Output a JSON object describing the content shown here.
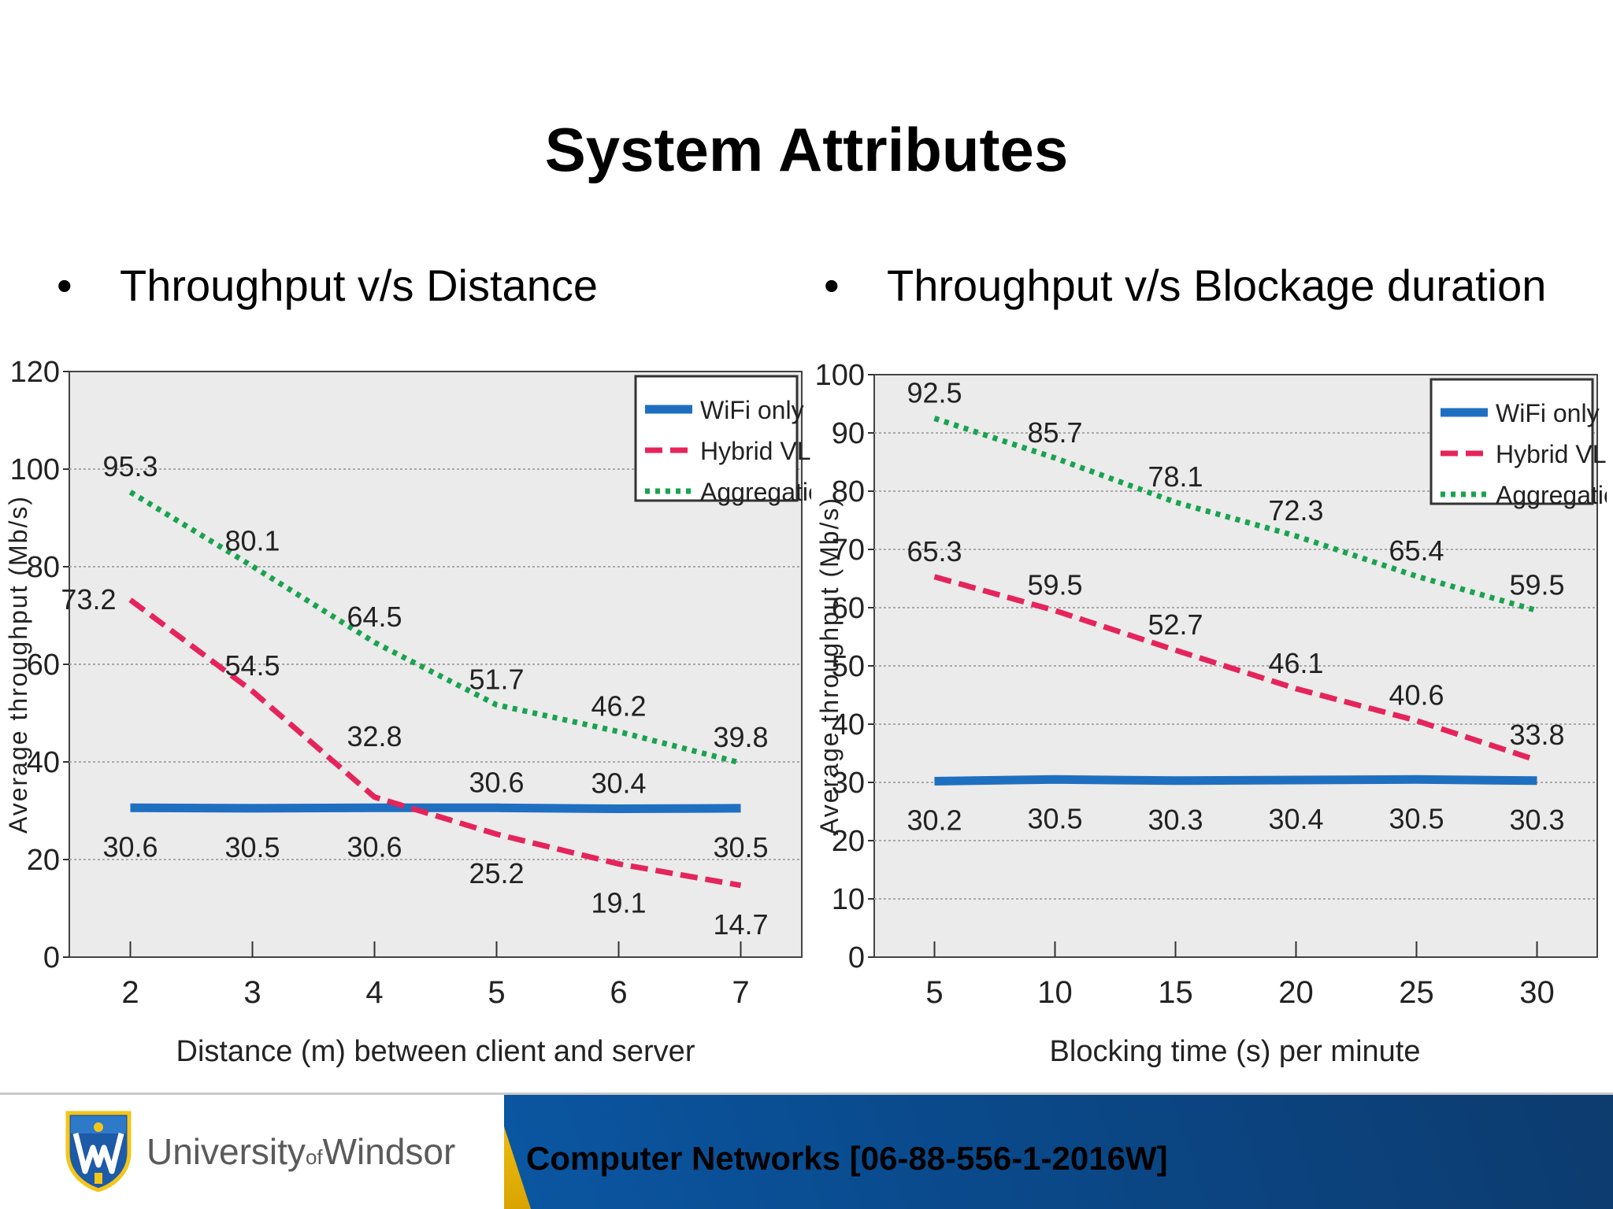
{
  "slide": {
    "title": "System Attributes",
    "bullets": [
      "Throughput v/s Distance",
      "Throughput v/s Blockage duration"
    ]
  },
  "footer": {
    "university_prefix": "University",
    "university_of": "of",
    "university_suffix": "Windsor",
    "course": "Computer Networks [06-88-556-1-2016W]",
    "colors": {
      "blue": "#0a4a8c",
      "gold": "#f5c518"
    }
  },
  "chart_data": [
    {
      "type": "line",
      "title": "",
      "xlabel": "Distance (m) between client and server",
      "ylabel": "Average throughput (Mb/s)",
      "x": [
        2,
        3,
        4,
        5,
        6,
        7
      ],
      "xlim": [
        1.5,
        7.5
      ],
      "ylim": [
        0,
        120
      ],
      "yticks": [
        0,
        20,
        40,
        60,
        80,
        100,
        120
      ],
      "grid": true,
      "legend": "top-right",
      "series": [
        {
          "name": "WiFi only",
          "values": [
            30.6,
            30.5,
            30.6,
            30.6,
            30.4,
            30.5
          ],
          "color": "#1f6fc1",
          "style": "solid"
        },
        {
          "name": "Hybrid VLC",
          "values": [
            73.2,
            54.5,
            32.8,
            25.2,
            19.1,
            14.7
          ],
          "color": "#e5245b",
          "style": "dashed"
        },
        {
          "name": "Aggregation",
          "values": [
            95.3,
            80.1,
            64.5,
            51.7,
            46.2,
            39.8
          ],
          "color": "#19a34f",
          "style": "dotted"
        }
      ],
      "labels": [
        {
          "text": "95.3",
          "x": 2,
          "y": 95.3,
          "pos": "above"
        },
        {
          "text": "80.1",
          "x": 3,
          "y": 80.1,
          "pos": "above"
        },
        {
          "text": "64.5",
          "x": 4,
          "y": 64.5,
          "pos": "above"
        },
        {
          "text": "51.7",
          "x": 5,
          "y": 51.7,
          "pos": "above"
        },
        {
          "text": "46.2",
          "x": 6,
          "y": 46.2,
          "pos": "above"
        },
        {
          "text": "39.8",
          "x": 7,
          "y": 39.8,
          "pos": "above"
        },
        {
          "text": "73.2",
          "x": 2,
          "y": 73.2,
          "pos": "left"
        },
        {
          "text": "54.5",
          "x": 3,
          "y": 54.5,
          "pos": "above"
        },
        {
          "text": "32.8",
          "x": 4,
          "y": 40,
          "pos": "above"
        },
        {
          "text": "25.2",
          "x": 5,
          "y": 25.2,
          "pos": "below"
        },
        {
          "text": "19.1",
          "x": 6,
          "y": 19.1,
          "pos": "below"
        },
        {
          "text": "14.7",
          "x": 7,
          "y": 14.7,
          "pos": "below"
        },
        {
          "text": "30.6",
          "x": 2,
          "y": 30.6,
          "pos": "below"
        },
        {
          "text": "30.5",
          "x": 3,
          "y": 30.5,
          "pos": "below"
        },
        {
          "text": "30.6",
          "x": 4,
          "y": 30.6,
          "pos": "below"
        },
        {
          "text": "30.6",
          "x": 5,
          "y": 30.6,
          "pos": "above"
        },
        {
          "text": "30.4",
          "x": 6,
          "y": 30.4,
          "pos": "above"
        },
        {
          "text": "30.5",
          "x": 7,
          "y": 30.5,
          "pos": "below"
        }
      ]
    },
    {
      "type": "line",
      "title": "",
      "xlabel": "Blocking time (s) per minute",
      "ylabel": "Average throughput (Mb/s)",
      "x": [
        5,
        10,
        15,
        20,
        25,
        30
      ],
      "xlim": [
        2.5,
        32.5
      ],
      "ylim": [
        0,
        100
      ],
      "yticks": [
        0,
        10,
        20,
        30,
        40,
        50,
        60,
        70,
        80,
        90,
        100
      ],
      "grid": true,
      "legend": "top-right",
      "series": [
        {
          "name": "WiFi only",
          "values": [
            30.2,
            30.5,
            30.3,
            30.4,
            30.5,
            30.3
          ],
          "color": "#1f6fc1",
          "style": "solid"
        },
        {
          "name": "Hybrid VLC",
          "values": [
            65.3,
            59.5,
            52.7,
            46.1,
            40.6,
            33.8
          ],
          "color": "#e5245b",
          "style": "dashed"
        },
        {
          "name": "Aggregation",
          "values": [
            92.5,
            85.7,
            78.1,
            72.3,
            65.4,
            59.5
          ],
          "color": "#19a34f",
          "style": "dotted"
        }
      ],
      "labels": [
        {
          "text": "92.5",
          "x": 5,
          "y": 92.5,
          "pos": "above"
        },
        {
          "text": "85.7",
          "x": 10,
          "y": 85.7,
          "pos": "above"
        },
        {
          "text": "78.1",
          "x": 15,
          "y": 78.1,
          "pos": "above"
        },
        {
          "text": "72.3",
          "x": 20,
          "y": 72.3,
          "pos": "above"
        },
        {
          "text": "65.4",
          "x": 25,
          "y": 65.4,
          "pos": "above"
        },
        {
          "text": "59.5",
          "x": 30,
          "y": 59.5,
          "pos": "above"
        },
        {
          "text": "65.3",
          "x": 5,
          "y": 65.3,
          "pos": "above"
        },
        {
          "text": "59.5",
          "x": 10,
          "y": 59.5,
          "pos": "above"
        },
        {
          "text": "52.7",
          "x": 15,
          "y": 52.7,
          "pos": "above"
        },
        {
          "text": "46.1",
          "x": 20,
          "y": 46.1,
          "pos": "above"
        },
        {
          "text": "40.6",
          "x": 25,
          "y": 40.6,
          "pos": "above"
        },
        {
          "text": "33.8",
          "x": 30,
          "y": 33.8,
          "pos": "above"
        },
        {
          "text": "30.2",
          "x": 5,
          "y": 30.2,
          "pos": "below"
        },
        {
          "text": "30.5",
          "x": 10,
          "y": 30.5,
          "pos": "below"
        },
        {
          "text": "30.3",
          "x": 15,
          "y": 30.3,
          "pos": "below"
        },
        {
          "text": "30.4",
          "x": 20,
          "y": 30.4,
          "pos": "below"
        },
        {
          "text": "30.5",
          "x": 25,
          "y": 30.5,
          "pos": "below"
        },
        {
          "text": "30.3",
          "x": 30,
          "y": 30.3,
          "pos": "below"
        }
      ]
    }
  ]
}
